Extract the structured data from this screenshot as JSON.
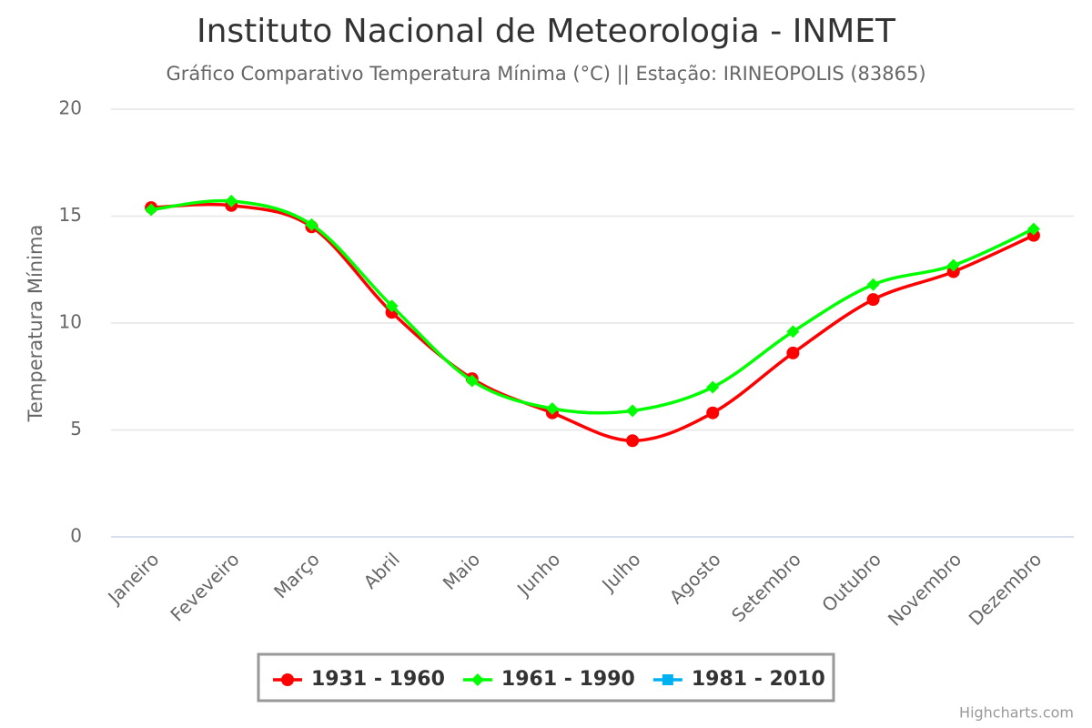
{
  "chart_data": {
    "type": "line",
    "title": "Instituto Nacional de Meteorologia - INMET",
    "subtitle": "Gráfico Comparativo Temperatura Mínima (°C) || Estação: IRINEOPOLIS (83865)",
    "y_label": "Temperatura Mínima",
    "credits": "Highcharts.com",
    "categories": [
      "Janeiro",
      "Feveveiro",
      "Março",
      "Abril",
      "Maio",
      "Junho",
      "Julho",
      "Agosto",
      "Setembro",
      "Outubro",
      "Novembro",
      "Dezembro"
    ],
    "series": [
      {
        "name": "1931 - 1960",
        "color": "#ff0000",
        "marker": "circle",
        "values": [
          15.4,
          15.5,
          14.5,
          10.5,
          7.4,
          5.8,
          4.5,
          5.8,
          8.6,
          11.1,
          12.4,
          14.1
        ]
      },
      {
        "name": "1961 - 1990",
        "color": "#00ff00",
        "marker": "diamond",
        "values": [
          15.3,
          15.7,
          14.6,
          10.8,
          7.3,
          6.0,
          5.9,
          7.0,
          9.6,
          11.8,
          12.7,
          14.4
        ]
      },
      {
        "name": "1981 - 2010",
        "color": "#00b0f0",
        "marker": "square",
        "values": [
          null,
          null,
          null,
          null,
          null,
          null,
          null,
          null,
          null,
          null,
          null,
          null
        ]
      }
    ],
    "ylim": [
      0,
      20
    ],
    "yticks": [
      0,
      5,
      10,
      15,
      20
    ],
    "grid": true,
    "smooth": true,
    "legend": "bottom"
  }
}
